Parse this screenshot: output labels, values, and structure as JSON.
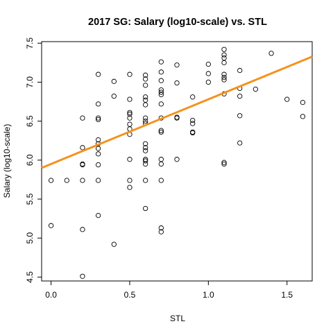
{
  "chart_data": {
    "type": "scatter",
    "title": "2017 SG: Salary (log10-scale) vs. STL",
    "xlabel": "STL",
    "ylabel": "Salary (log10-scale)",
    "xlim": [
      -0.06,
      1.66
    ],
    "ylim": [
      4.45,
      7.52
    ],
    "xticks": [
      0.0,
      0.5,
      1.0,
      1.5
    ],
    "xtick_labels": [
      "0.0",
      "0.5",
      "1.0",
      "1.5"
    ],
    "yticks": [
      4.5,
      5.0,
      5.5,
      6.0,
      6.5,
      7.0,
      7.5
    ],
    "ytick_labels": [
      "4.5",
      "5.0",
      "5.5",
      "6.0",
      "6.5",
      "7.0",
      "7.5"
    ],
    "grid": false,
    "legend": "none",
    "point_color": "#000000",
    "fit_line": {
      "intercept": 5.95,
      "slope": 0.83,
      "color": "#f5921e"
    },
    "points": [
      {
        "x": 0.0,
        "y": 5.74
      },
      {
        "x": 0.0,
        "y": 5.16
      },
      {
        "x": 0.1,
        "y": 5.74
      },
      {
        "x": 0.2,
        "y": 6.54
      },
      {
        "x": 0.2,
        "y": 6.16
      },
      {
        "x": 0.2,
        "y": 5.95
      },
      {
        "x": 0.2,
        "y": 5.94
      },
      {
        "x": 0.2,
        "y": 5.74
      },
      {
        "x": 0.2,
        "y": 5.11
      },
      {
        "x": 0.2,
        "y": 4.51
      },
      {
        "x": 0.3,
        "y": 7.1
      },
      {
        "x": 0.3,
        "y": 6.72
      },
      {
        "x": 0.3,
        "y": 6.54
      },
      {
        "x": 0.3,
        "y": 6.52
      },
      {
        "x": 0.3,
        "y": 6.26
      },
      {
        "x": 0.3,
        "y": 6.21
      },
      {
        "x": 0.3,
        "y": 6.15
      },
      {
        "x": 0.3,
        "y": 6.08
      },
      {
        "x": 0.3,
        "y": 5.94
      },
      {
        "x": 0.3,
        "y": 5.74
      },
      {
        "x": 0.3,
        "y": 5.29
      },
      {
        "x": 0.4,
        "y": 7.01
      },
      {
        "x": 0.4,
        "y": 6.82
      },
      {
        "x": 0.4,
        "y": 4.92
      },
      {
        "x": 0.5,
        "y": 7.1
      },
      {
        "x": 0.5,
        "y": 6.78
      },
      {
        "x": 0.5,
        "y": 6.61
      },
      {
        "x": 0.5,
        "y": 6.59
      },
      {
        "x": 0.5,
        "y": 6.54
      },
      {
        "x": 0.5,
        "y": 6.46
      },
      {
        "x": 0.5,
        "y": 6.4
      },
      {
        "x": 0.5,
        "y": 6.33
      },
      {
        "x": 0.5,
        "y": 6.01
      },
      {
        "x": 0.5,
        "y": 5.74
      },
      {
        "x": 0.5,
        "y": 5.65
      },
      {
        "x": 0.6,
        "y": 7.09
      },
      {
        "x": 0.6,
        "y": 7.04
      },
      {
        "x": 0.6,
        "y": 6.96
      },
      {
        "x": 0.6,
        "y": 6.81
      },
      {
        "x": 0.6,
        "y": 6.77
      },
      {
        "x": 0.6,
        "y": 6.71
      },
      {
        "x": 0.6,
        "y": 6.54
      },
      {
        "x": 0.6,
        "y": 6.5
      },
      {
        "x": 0.6,
        "y": 6.47
      },
      {
        "x": 0.6,
        "y": 6.21
      },
      {
        "x": 0.6,
        "y": 6.16
      },
      {
        "x": 0.6,
        "y": 6.12
      },
      {
        "x": 0.6,
        "y": 6.01
      },
      {
        "x": 0.6,
        "y": 5.99
      },
      {
        "x": 0.6,
        "y": 5.95
      },
      {
        "x": 0.6,
        "y": 5.74
      },
      {
        "x": 0.6,
        "y": 5.38
      },
      {
        "x": 0.7,
        "y": 7.26
      },
      {
        "x": 0.7,
        "y": 7.13
      },
      {
        "x": 0.7,
        "y": 7.02
      },
      {
        "x": 0.7,
        "y": 6.9
      },
      {
        "x": 0.7,
        "y": 6.87
      },
      {
        "x": 0.7,
        "y": 6.84
      },
      {
        "x": 0.7,
        "y": 6.72
      },
      {
        "x": 0.7,
        "y": 6.54
      },
      {
        "x": 0.7,
        "y": 6.38
      },
      {
        "x": 0.7,
        "y": 6.36
      },
      {
        "x": 0.7,
        "y": 6.01
      },
      {
        "x": 0.7,
        "y": 5.95
      },
      {
        "x": 0.7,
        "y": 5.74
      },
      {
        "x": 0.7,
        "y": 5.13
      },
      {
        "x": 0.7,
        "y": 5.08
      },
      {
        "x": 0.8,
        "y": 7.22
      },
      {
        "x": 0.8,
        "y": 6.99
      },
      {
        "x": 0.8,
        "y": 6.55
      },
      {
        "x": 0.8,
        "y": 6.54
      },
      {
        "x": 0.8,
        "y": 6.01
      },
      {
        "x": 0.9,
        "y": 6.81
      },
      {
        "x": 0.9,
        "y": 6.51
      },
      {
        "x": 0.9,
        "y": 6.47
      },
      {
        "x": 0.9,
        "y": 6.36
      },
      {
        "x": 0.9,
        "y": 6.35
      },
      {
        "x": 1.0,
        "y": 7.23
      },
      {
        "x": 1.0,
        "y": 7.11
      },
      {
        "x": 1.0,
        "y": 7.0
      },
      {
        "x": 1.1,
        "y": 7.42
      },
      {
        "x": 1.1,
        "y": 7.35
      },
      {
        "x": 1.1,
        "y": 7.31
      },
      {
        "x": 1.1,
        "y": 7.25
      },
      {
        "x": 1.1,
        "y": 7.1
      },
      {
        "x": 1.1,
        "y": 7.06
      },
      {
        "x": 1.1,
        "y": 7.03
      },
      {
        "x": 1.1,
        "y": 6.85
      },
      {
        "x": 1.1,
        "y": 5.97
      },
      {
        "x": 1.1,
        "y": 5.95
      },
      {
        "x": 1.2,
        "y": 7.15
      },
      {
        "x": 1.2,
        "y": 6.92
      },
      {
        "x": 1.2,
        "y": 6.82
      },
      {
        "x": 1.2,
        "y": 6.57
      },
      {
        "x": 1.2,
        "y": 6.22
      },
      {
        "x": 1.3,
        "y": 6.91
      },
      {
        "x": 1.4,
        "y": 7.37
      },
      {
        "x": 1.5,
        "y": 6.78
      },
      {
        "x": 1.6,
        "y": 6.74
      },
      {
        "x": 1.6,
        "y": 6.56
      }
    ]
  }
}
